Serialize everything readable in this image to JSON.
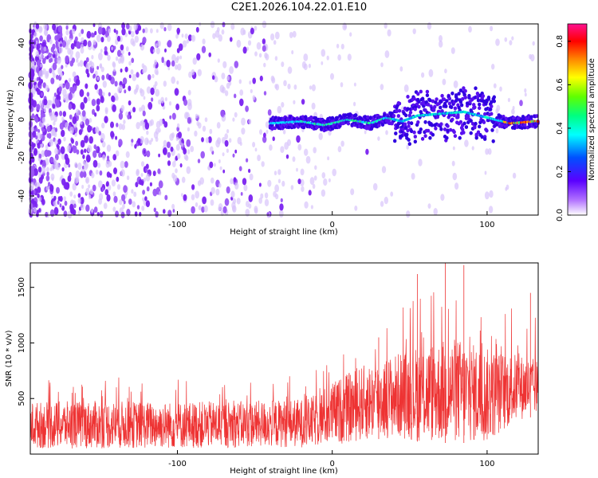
{
  "title": "C2E1.2026.104.22.01.E10",
  "colors": {
    "spectrogram_low": "#8a3cf0",
    "spectrogram_mid": "#00c8ff",
    "spectrogram_high": "#ff0000",
    "snr_line": "#ee3333"
  },
  "chart_data": [
    {
      "type": "heatmap",
      "title": "C2E1.2026.104.22.01.E10",
      "xlabel": "Height of straight line (km)",
      "ylabel": "Frequency (Hz)",
      "xlim": [
        -195,
        133
      ],
      "ylim": [
        -50,
        50
      ],
      "xticks": [
        -100,
        0,
        100
      ],
      "yticks": [
        -40,
        -20,
        0,
        20,
        40
      ],
      "colorbar": {
        "label": "Normalized spectral amplitude",
        "range": [
          0.0,
          0.88
        ],
        "ticks": [
          0.0,
          0.2,
          0.4,
          0.6,
          0.8
        ],
        "colormap": "rainbow"
      },
      "description_series": {
        "ridge_frequency": [
          {
            "x": -40,
            "y": -2
          },
          {
            "x": -20,
            "y": -1
          },
          {
            "x": -5,
            "y": -3
          },
          {
            "x": 10,
            "y": 0
          },
          {
            "x": 25,
            "y": -2
          },
          {
            "x": 35,
            "y": 1
          },
          {
            "x": 45,
            "y": -1
          },
          {
            "x": 55,
            "y": 2
          },
          {
            "x": 70,
            "y": 3
          },
          {
            "x": 85,
            "y": 4
          },
          {
            "x": 100,
            "y": 1
          },
          {
            "x": 115,
            "y": -2
          },
          {
            "x": 130,
            "y": -1
          }
        ]
      }
    },
    {
      "type": "line",
      "xlabel": "Height of straight line (km)",
      "ylabel": "SNR (10 * v/v)",
      "xlim": [
        -195,
        133
      ],
      "ylim": [
        0,
        1720
      ],
      "xticks": [
        -100,
        0,
        100
      ],
      "yticks": [
        500,
        1000,
        1500
      ],
      "series": [
        {
          "envelope": [
            {
              "x": -195,
              "low": 50,
              "high": 470
            },
            {
              "x": -150,
              "low": 50,
              "high": 480
            },
            {
              "x": -100,
              "low": 50,
              "high": 470
            },
            {
              "x": -50,
              "low": 60,
              "high": 480
            },
            {
              "x": -15,
              "low": 60,
              "high": 500
            },
            {
              "x": 0,
              "low": 80,
              "high": 650
            },
            {
              "x": 20,
              "low": 120,
              "high": 800
            },
            {
              "x": 40,
              "low": 150,
              "high": 900
            },
            {
              "x": 60,
              "low": 100,
              "high": 1000
            },
            {
              "x": 80,
              "low": 100,
              "high": 1050
            },
            {
              "x": 100,
              "low": 100,
              "high": 950
            },
            {
              "x": 120,
              "low": 300,
              "high": 900
            },
            {
              "x": 133,
              "low": 350,
              "high": 850
            }
          ],
          "peaks": [
            {
              "x": 55,
              "y": 1620
            },
            {
              "x": 73,
              "y": 1720
            },
            {
              "x": 85,
              "y": 1700
            },
            {
              "x": 128,
              "y": 1450
            },
            {
              "x": 30,
              "y": 1050
            }
          ]
        }
      ]
    }
  ]
}
